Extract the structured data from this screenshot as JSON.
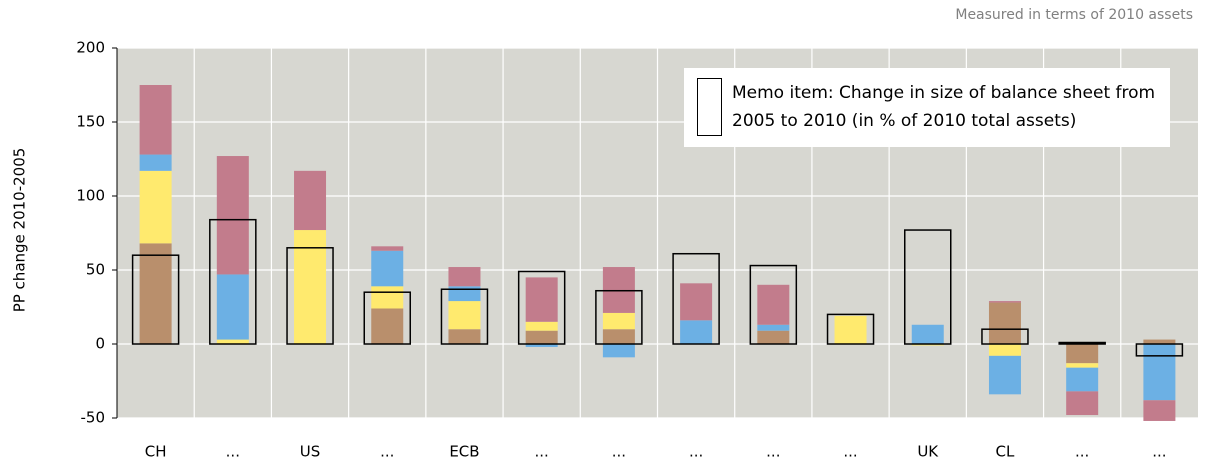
{
  "chart_data": {
    "type": "stacked_bar",
    "subtitle": "Measured in terms of 2010 assets",
    "y_label": "PP change 2010-2005",
    "categories": [
      "CH",
      "...",
      "US",
      "...",
      "ECB",
      "...",
      "...",
      "...",
      "...",
      "...",
      "UK",
      "CL",
      "...",
      "..."
    ],
    "series": [
      {
        "color": "#b98f6c",
        "values": [
          68,
          0,
          0,
          24,
          10,
          9,
          10,
          0,
          9,
          0,
          0,
          28,
          -13,
          3
        ]
      },
      {
        "color": "#ffea6e",
        "values": [
          49,
          3,
          77,
          15,
          19,
          6,
          11,
          0,
          0,
          19,
          -1,
          -8,
          -3,
          0
        ]
      },
      {
        "color": "#6cb0e4",
        "values": [
          11,
          44,
          0,
          24,
          10,
          -2,
          -9,
          16,
          4,
          0,
          13,
          -26,
          -16,
          -38
        ]
      },
      {
        "color": "#c27c8c",
        "values": [
          47,
          80,
          40,
          3,
          13,
          30,
          31,
          25,
          27,
          0,
          0,
          1,
          -16,
          -14
        ]
      }
    ],
    "memo": {
      "name": "Memo item: Change in size of balance sheet from 2005 to 2010 (in % of 2010 total assets)",
      "color": "#000000",
      "values": [
        60,
        84,
        65,
        35,
        37,
        49,
        36,
        61,
        53,
        20,
        77,
        10,
        1,
        -8
      ]
    },
    "ylim": [
      -50,
      200
    ],
    "yticks": [
      -50,
      0,
      50,
      100,
      150,
      200
    ],
    "grid": true,
    "legend": "upper right"
  }
}
